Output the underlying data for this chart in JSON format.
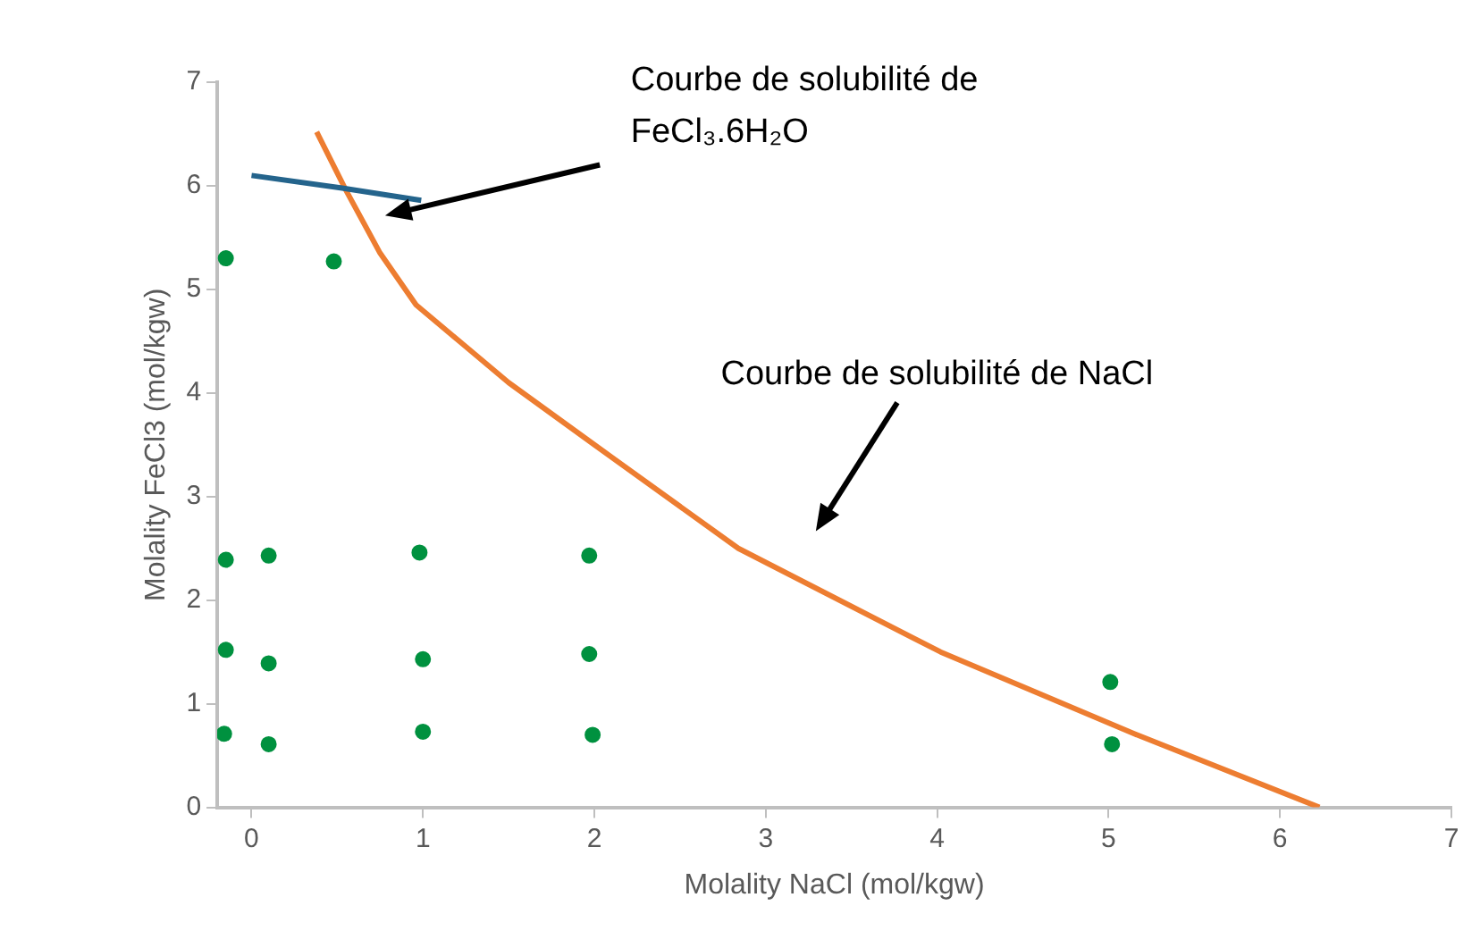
{
  "chart_data": {
    "type": "scatter",
    "xlabel": "Molality NaCl (mol/kgw)",
    "ylabel": "Molality FeCl3 (mol/kgw)",
    "xlim": [
      -0.2,
      7
    ],
    "xticks": [
      0,
      1,
      2,
      3,
      4,
      5,
      6,
      7
    ],
    "ylim": [
      0,
      7
    ],
    "yticks": [
      0,
      1,
      2,
      3,
      4,
      5,
      6,
      7
    ],
    "grid": false,
    "legend": false,
    "marker": "circle",
    "series": [
      {
        "type": "scatter",
        "color": "#00913f",
        "x": [
          -0.15,
          0.48,
          -0.15,
          0.1,
          0.98,
          1.97,
          -0.15,
          0.1,
          1,
          1.97,
          -0.16,
          0.1,
          1,
          1.99,
          5.01,
          5.02
        ],
        "values": [
          5.3,
          5.27,
          2.39,
          2.43,
          2.46,
          2.43,
          1.52,
          1.39,
          1.43,
          1.48,
          0.71,
          0.61,
          0.73,
          0.7,
          1.21,
          0.61
        ]
      },
      {
        "type": "line",
        "color": "#24648c",
        "marker": "none",
        "x": [
          0,
          0.52,
          0.99
        ],
        "values": [
          6.1,
          5.98,
          5.86
        ]
      },
      {
        "type": "line",
        "color": "#ed7d31",
        "marker": "none",
        "x": [
          0.38,
          0.55,
          0.75,
          0.96,
          1.5,
          2,
          2.84,
          4.02,
          5.15,
          6.23
        ],
        "values": [
          6.52,
          5.96,
          5.35,
          4.85,
          4.1,
          3.5,
          2.5,
          1.5,
          0.71,
          0
        ]
      }
    ],
    "annotations": [
      "Courbe de solubilité de FeCl₃.6H₂O",
      "Courbe de solubilité de NaCl"
    ]
  }
}
